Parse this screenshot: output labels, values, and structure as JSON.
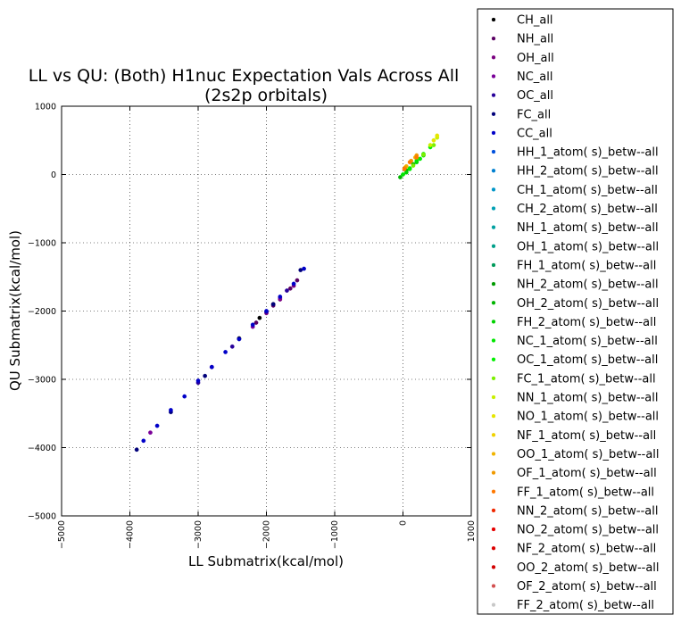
{
  "chart_data": {
    "type": "scatter",
    "title": "LL vs QU: (Both) H1nuc Expectation Vals Across All\n(2s2p orbitals)",
    "title_lines": [
      "LL vs QU: (Both) H1nuc Expectation Vals Across All",
      "(2s2p orbitals)"
    ],
    "xlabel": "LL Submatrix(kcal/mol)",
    "ylabel": "QU Submatrix(kcal/mol)",
    "xlim": [
      -5000,
      1000
    ],
    "ylim": [
      -5000,
      1000
    ],
    "xticks": [
      -5000,
      -4000,
      -3000,
      -2000,
      -1000,
      0,
      1000
    ],
    "yticks": [
      -5000,
      -4000,
      -3000,
      -2000,
      -1000,
      0,
      1000
    ],
    "xtick_labels": [
      "−5000",
      "−4000",
      "−3000",
      "−2000",
      "−1000",
      "0",
      "1000"
    ],
    "ytick_labels": [
      "−5000",
      "−4000",
      "−3000",
      "−2000",
      "−1000",
      "0",
      "1000"
    ],
    "grid": true,
    "legend_position": "outside-right",
    "series": [
      {
        "name": "CH_all",
        "color": "#000000",
        "x": [
          -2400,
          -2100,
          -1900
        ],
        "y": [
          -2400,
          -2100,
          -1900
        ]
      },
      {
        "name": "NH_all",
        "color": "#5a0063",
        "x": [
          -2150,
          -1900,
          -1650,
          -1550
        ],
        "y": [
          -2170,
          -1920,
          -1670,
          -1550
        ]
      },
      {
        "name": "OH_all",
        "color": "#7a007f",
        "x": [
          -2000,
          -1800,
          -1600
        ],
        "y": [
          -2030,
          -1830,
          -1630
        ]
      },
      {
        "name": "NC_all",
        "color": "#7a0098",
        "x": [
          -3700,
          -2800,
          -2200,
          -1800
        ],
        "y": [
          -3780,
          -2820,
          -2230,
          -1810
        ]
      },
      {
        "name": "OC_all",
        "color": "#27009a",
        "x": [
          -3000,
          -2500,
          -2000,
          -1700
        ],
        "y": [
          -3050,
          -2520,
          -2010,
          -1700
        ]
      },
      {
        "name": "FC_all",
        "color": "#00007a",
        "x": [
          -3900,
          -3400,
          -2900,
          -2400,
          -1900,
          -1500
        ],
        "y": [
          -4030,
          -3480,
          -2950,
          -2410,
          -1900,
          -1400
        ]
      },
      {
        "name": "CC_all",
        "color": "#0000c8",
        "x": [
          -3800,
          -3600,
          -3400,
          -3200,
          -3000,
          -2800,
          -2600,
          -2400,
          -2200,
          -2000,
          -1800,
          -1600,
          -1450
        ],
        "y": [
          -3900,
          -3680,
          -3450,
          -3250,
          -3020,
          -2820,
          -2600,
          -2410,
          -2200,
          -2000,
          -1790,
          -1600,
          -1380
        ]
      },
      {
        "name": "HH_1_atom( s)_betw--all",
        "color": "#0050dd",
        "x": [],
        "y": []
      },
      {
        "name": "HH_2_atom( s)_betw--all",
        "color": "#0080d0",
        "x": [],
        "y": []
      },
      {
        "name": "CH_1_atom( s)_betw--all",
        "color": "#0096c8",
        "x": [],
        "y": []
      },
      {
        "name": "CH_2_atom( s)_betw--all",
        "color": "#00a0b4",
        "x": [],
        "y": []
      },
      {
        "name": "NH_1_atom( s)_betw--all",
        "color": "#00a0a0",
        "x": [],
        "y": []
      },
      {
        "name": "OH_1_atom( s)_betw--all",
        "color": "#00a08a",
        "x": [],
        "y": []
      },
      {
        "name": "FH_1_atom( s)_betw--all",
        "color": "#009a5a",
        "x": [],
        "y": []
      },
      {
        "name": "NH_2_atom( s)_betw--all",
        "color": "#009a00",
        "x": [],
        "y": []
      },
      {
        "name": "OH_2_atom( s)_betw--all",
        "color": "#00b400",
        "x": [
          -40,
          50,
          150
        ],
        "y": [
          -40,
          60,
          150
        ]
      },
      {
        "name": "FH_2_atom( s)_betw--all",
        "color": "#00d200",
        "x": [
          50,
          200,
          300
        ],
        "y": [
          30,
          180,
          280
        ]
      },
      {
        "name": "NC_1_atom( s)_betw--all",
        "color": "#00e600",
        "x": [
          0,
          100,
          200,
          300
        ],
        "y": [
          0,
          90,
          200,
          300
        ]
      },
      {
        "name": "OC_1_atom( s)_betw--all",
        "color": "#00f000",
        "x": [
          100,
          250,
          400
        ],
        "y": [
          80,
          230,
          400
        ]
      },
      {
        "name": "FC_1_atom( s)_betw--all",
        "color": "#7cf000",
        "x": [
          150,
          300,
          450
        ],
        "y": [
          130,
          290,
          430
        ]
      },
      {
        "name": "NN_1_atom( s)_betw--all",
        "color": "#c8f000",
        "x": [
          400,
          500
        ],
        "y": [
          430,
          540
        ]
      },
      {
        "name": "NO_1_atom( s)_betw--all",
        "color": "#e6e600",
        "x": [
          450,
          500
        ],
        "y": [
          500,
          570
        ]
      },
      {
        "name": "NF_1_atom( s)_betw--all",
        "color": "#f0d200",
        "x": [],
        "y": []
      },
      {
        "name": "OO_1_atom( s)_betw--all",
        "color": "#f0b400",
        "x": [
          50,
          180
        ],
        "y": [
          120,
          250
        ]
      },
      {
        "name": "OF_1_atom( s)_betw--all",
        "color": "#f09a00",
        "x": [
          30,
          120,
          200
        ],
        "y": [
          100,
          200,
          280
        ]
      },
      {
        "name": "FF_1_atom( s)_betw--all",
        "color": "#ff7800",
        "x": [
          20,
          100,
          200
        ],
        "y": [
          80,
          180,
          250
        ]
      },
      {
        "name": "NN_2_atom( s)_betw--all",
        "color": "#f02800",
        "x": [],
        "y": []
      },
      {
        "name": "NO_2_atom( s)_betw--all",
        "color": "#e60000",
        "x": [],
        "y": []
      },
      {
        "name": "NF_2_atom( s)_betw--all",
        "color": "#dc0000",
        "x": [],
        "y": []
      },
      {
        "name": "OO_2_atom( s)_betw--all",
        "color": "#d20000",
        "x": [],
        "y": []
      },
      {
        "name": "OF_2_atom( s)_betw--all",
        "color": "#d25050",
        "x": [],
        "y": []
      },
      {
        "name": "FF_2_atom( s)_betw--all",
        "color": "#c8c8c8",
        "x": [],
        "y": []
      }
    ]
  }
}
